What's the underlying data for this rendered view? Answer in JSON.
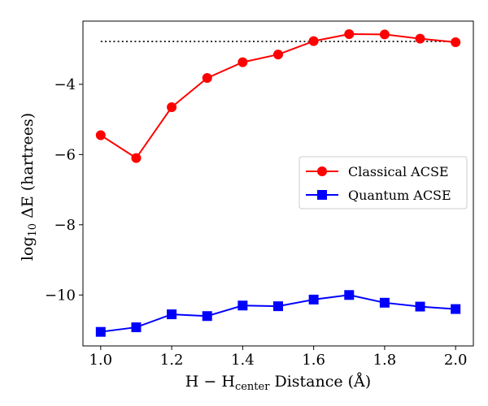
{
  "chart_data": {
    "type": "line",
    "xlabel": "H − Hcenter Distance (Å)",
    "xlabel_parts": {
      "pre": "H − H",
      "sub": "center",
      "post": " Distance (Å)"
    },
    "ylabel": "log10 ΔE (hartrees)",
    "ylabel_parts": {
      "pre": "log",
      "sub": "10",
      "post": " ΔE (hartrees)"
    },
    "xlim": [
      0.95,
      2.05
    ],
    "ylim": [
      -11.45,
      -2.2
    ],
    "x_ticks": [
      1.0,
      1.2,
      1.4,
      1.6,
      1.8,
      2.0
    ],
    "x_tick_labels": [
      "1.0",
      "1.2",
      "1.4",
      "1.6",
      "1.8",
      "2.0"
    ],
    "y_ticks": [
      -10,
      -8,
      -6,
      -4
    ],
    "y_tick_labels": [
      "−10",
      "−8",
      "−6",
      "−4"
    ],
    "x": [
      1.0,
      1.1,
      1.2,
      1.3,
      1.4,
      1.5,
      1.6,
      1.7,
      1.8,
      1.9,
      2.0
    ],
    "series": [
      {
        "name": "Classical ACSE",
        "color": "#ff0000",
        "marker": "circle",
        "values": [
          -5.45,
          -6.1,
          -4.65,
          -3.82,
          -3.37,
          -3.15,
          -2.77,
          -2.57,
          -2.58,
          -2.7,
          -2.8
        ]
      },
      {
        "name": "Quantum ACSE",
        "color": "#0000ff",
        "marker": "square",
        "values": [
          -11.05,
          -10.92,
          -10.55,
          -10.6,
          -10.3,
          -10.32,
          -10.13,
          -10.0,
          -10.22,
          -10.33,
          -10.4
        ]
      }
    ],
    "reference_line": {
      "y": -2.78,
      "x_range": [
        1.0,
        2.0
      ],
      "style": "dotted",
      "color": "#000000"
    },
    "legend": {
      "position": "center-right",
      "entries": [
        "Classical ACSE",
        "Quantum ACSE"
      ]
    },
    "grid": false
  }
}
